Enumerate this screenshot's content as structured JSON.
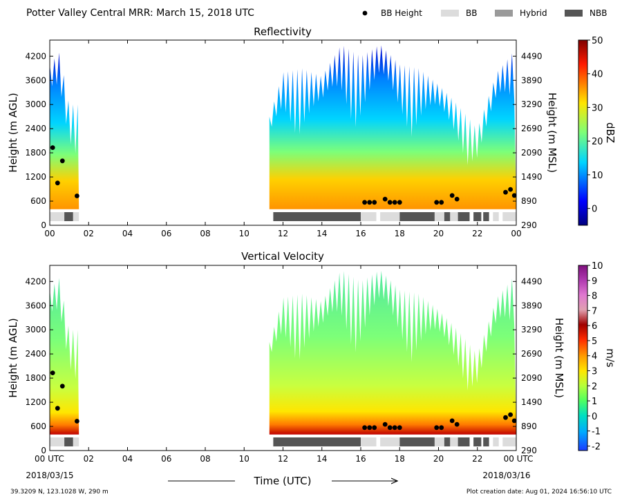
{
  "suptitle": "Potter Valley Central MRR:  March 15, 2018 UTC",
  "legend": {
    "position": "top-right",
    "items": [
      {
        "label": "BB Height",
        "kind": "marker",
        "color": "#000000"
      },
      {
        "label": "BB",
        "kind": "patch",
        "color": "#dcdcdc"
      },
      {
        "label": "Hybrid",
        "kind": "patch",
        "color": "#9a9a9a"
      },
      {
        "label": "NBB",
        "kind": "patch",
        "color": "#555555"
      }
    ]
  },
  "x_axis": {
    "label": "Time (UTC)",
    "range_hours": [
      0,
      24
    ],
    "ticks": [
      {
        "hour": 0,
        "label": "00"
      },
      {
        "hour": 2,
        "label": "02"
      },
      {
        "hour": 4,
        "label": "04"
      },
      {
        "hour": 6,
        "label": "06"
      },
      {
        "hour": 8,
        "label": "08"
      },
      {
        "hour": 10,
        "label": "10"
      },
      {
        "hour": 12,
        "label": "12"
      },
      {
        "hour": 14,
        "label": "14"
      },
      {
        "hour": 16,
        "label": "16"
      },
      {
        "hour": 18,
        "label": "18"
      },
      {
        "hour": 20,
        "label": "20"
      },
      {
        "hour": 22,
        "label": "22"
      },
      {
        "hour": 24,
        "label": "00"
      }
    ],
    "bottom_ticks": [
      {
        "hour": 0,
        "label": "00 UTC"
      },
      {
        "hour": 2,
        "label": "02"
      },
      {
        "hour": 4,
        "label": "04"
      },
      {
        "hour": 6,
        "label": "06"
      },
      {
        "hour": 8,
        "label": "08"
      },
      {
        "hour": 10,
        "label": "10"
      },
      {
        "hour": 12,
        "label": "12"
      },
      {
        "hour": 14,
        "label": "14"
      },
      {
        "hour": 16,
        "label": "16"
      },
      {
        "hour": 18,
        "label": "18"
      },
      {
        "hour": 20,
        "label": "20"
      },
      {
        "hour": 22,
        "label": "22"
      },
      {
        "hour": 24,
        "label": "00 UTC"
      }
    ],
    "start_date": "2018/03/15",
    "end_date": "2018/03/16"
  },
  "y_axis": {
    "left_label": "Height (m AGL)",
    "right_label": "Height (m MSL)",
    "range": [
      0,
      4600
    ],
    "left_ticks": [
      0,
      600,
      1200,
      1800,
      2400,
      3000,
      3600,
      4200
    ],
    "right_ticks": [
      {
        "agl": 0,
        "label": "290"
      },
      {
        "agl": 600,
        "label": "890"
      },
      {
        "agl": 1200,
        "label": "1490"
      },
      {
        "agl": 1800,
        "label": "2090"
      },
      {
        "agl": 2400,
        "label": "2690"
      },
      {
        "agl": 3000,
        "label": "3290"
      },
      {
        "agl": 3600,
        "label": "3890"
      },
      {
        "agl": 4200,
        "label": "4490"
      }
    ]
  },
  "footer": {
    "location": "39.3209 N, 123.1028 W, 290 m",
    "creation": "Plot creation date: Aug 01, 2024 16:56:10 UTC"
  },
  "chart_data": [
    {
      "type": "heatmap",
      "title": "Reflectivity",
      "xlabel": "",
      "ylabel": "Height (m AGL)",
      "ylabel_right": "Height (m MSL)",
      "colorbar": {
        "label": "dBZ",
        "range": [
          -5,
          50
        ],
        "ticks": [
          0,
          10,
          20,
          30,
          40,
          50
        ],
        "colormap": "jet"
      },
      "precip_periods_hours": [
        [
          0.0,
          1.5
        ],
        [
          11.3,
          24.0
        ]
      ],
      "echo_top_profile": [
        {
          "hour": 0.0,
          "top_m": 4000
        },
        {
          "hour": 0.5,
          "top_m": 4300
        },
        {
          "hour": 1.0,
          "top_m": 3000
        },
        {
          "hour": 1.5,
          "top_m": 3000
        },
        {
          "hour": 11.3,
          "top_m": 2700
        },
        {
          "hour": 12.0,
          "top_m": 3800
        },
        {
          "hour": 13.0,
          "top_m": 3900
        },
        {
          "hour": 14.0,
          "top_m": 3700
        },
        {
          "hour": 15.0,
          "top_m": 4500
        },
        {
          "hour": 16.0,
          "top_m": 4200
        },
        {
          "hour": 17.0,
          "top_m": 4500
        },
        {
          "hour": 18.0,
          "top_m": 4000
        },
        {
          "hour": 19.0,
          "top_m": 3900
        },
        {
          "hour": 20.0,
          "top_m": 3500
        },
        {
          "hour": 21.0,
          "top_m": 3000
        },
        {
          "hour": 22.0,
          "top_m": 2400
        },
        {
          "hour": 23.0,
          "top_m": 3800
        },
        {
          "hour": 24.0,
          "top_m": 4400
        }
      ]
    },
    {
      "type": "heatmap",
      "title": "Vertical Velocity",
      "xlabel": "Time (UTC)",
      "ylabel": "Height (m AGL)",
      "ylabel_right": "Height (m MSL)",
      "colorbar": {
        "label": "m/s",
        "range": [
          -2.3,
          10
        ],
        "ticks": [
          -2,
          -1,
          0,
          1,
          2,
          3,
          4,
          5,
          6,
          7,
          8,
          9,
          10
        ],
        "colormap": "diverging rainbow"
      },
      "precip_periods_hours": [
        [
          0.0,
          1.5
        ],
        [
          11.3,
          24.0
        ]
      ]
    }
  ],
  "bb_height_points": [
    {
      "hour": 0.15,
      "height_m": 1930
    },
    {
      "hour": 0.4,
      "height_m": 1050
    },
    {
      "hour": 0.65,
      "height_m": 1600
    },
    {
      "hour": 1.4,
      "height_m": 730
    },
    {
      "hour": 16.2,
      "height_m": 570
    },
    {
      "hour": 16.45,
      "height_m": 570
    },
    {
      "hour": 16.7,
      "height_m": 570
    },
    {
      "hour": 17.25,
      "height_m": 650
    },
    {
      "hour": 17.5,
      "height_m": 570
    },
    {
      "hour": 17.75,
      "height_m": 570
    },
    {
      "hour": 18.0,
      "height_m": 570
    },
    {
      "hour": 19.9,
      "height_m": 570
    },
    {
      "hour": 20.15,
      "height_m": 570
    },
    {
      "hour": 20.7,
      "height_m": 740
    },
    {
      "hour": 20.95,
      "height_m": 650
    },
    {
      "hour": 23.45,
      "height_m": 820
    },
    {
      "hour": 23.7,
      "height_m": 890
    },
    {
      "hour": 23.9,
      "height_m": 740
    }
  ],
  "bb_type_segments": [
    {
      "start": 0.0,
      "end": 0.75,
      "type": "BB"
    },
    {
      "start": 0.75,
      "end": 1.2,
      "type": "NBB"
    },
    {
      "start": 1.2,
      "end": 1.5,
      "type": "BB"
    },
    {
      "start": 11.5,
      "end": 16.0,
      "type": "NBB"
    },
    {
      "start": 16.0,
      "end": 16.8,
      "type": "BB"
    },
    {
      "start": 17.0,
      "end": 18.0,
      "type": "BB"
    },
    {
      "start": 18.0,
      "end": 19.8,
      "type": "NBB"
    },
    {
      "start": 19.8,
      "end": 20.3,
      "type": "BB"
    },
    {
      "start": 20.3,
      "end": 20.6,
      "type": "NBB"
    },
    {
      "start": 20.6,
      "end": 21.0,
      "type": "BB"
    },
    {
      "start": 21.0,
      "end": 21.6,
      "type": "NBB"
    },
    {
      "start": 21.8,
      "end": 22.2,
      "type": "NBB"
    },
    {
      "start": 22.3,
      "end": 22.6,
      "type": "NBB"
    },
    {
      "start": 22.8,
      "end": 23.1,
      "type": "BB"
    },
    {
      "start": 23.3,
      "end": 24.0,
      "type": "BB"
    }
  ]
}
